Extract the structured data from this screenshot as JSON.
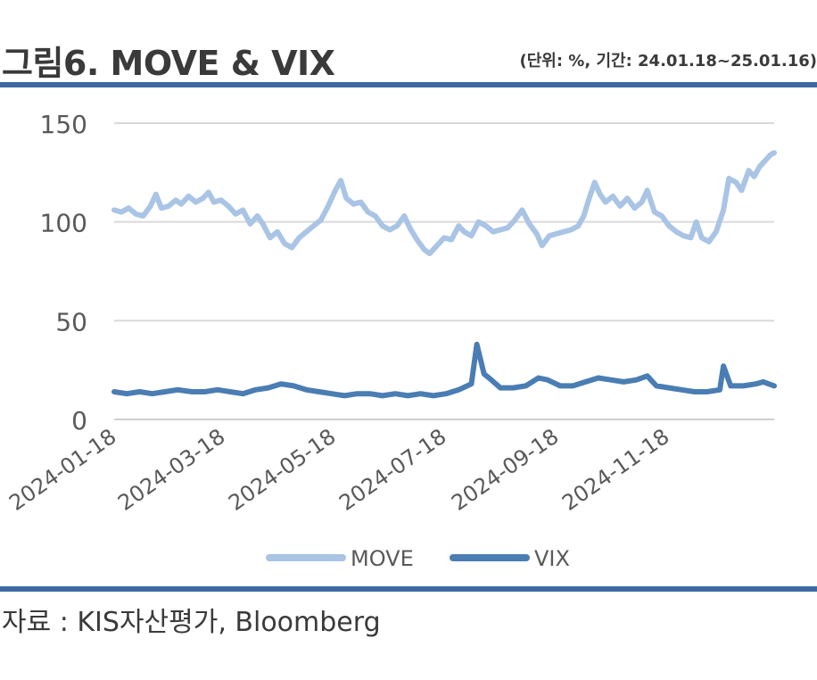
{
  "header": {
    "title": "그림6. MOVE & VIX",
    "unit_note": "(단위: %, 기간: 24.01.18~25.01.16)"
  },
  "footer": {
    "source": "자료 : KIS자산평가, Bloomberg"
  },
  "colors": {
    "rule": "#3d6aa3",
    "grid": "#d9d9d9",
    "text": "#595959"
  },
  "chart_data": {
    "type": "line",
    "x_start": "2024-01-18",
    "x_end": "2025-01-16",
    "x_tick_labels": [
      "2024-01-18",
      "2024-03-18",
      "2024-05-18",
      "2024-07-18",
      "2024-09-18",
      "2024-11-18"
    ],
    "y_ticks": [
      0,
      50,
      100,
      150
    ],
    "ylim": [
      0,
      150
    ],
    "grid": true,
    "legend_position": "bottom",
    "series": [
      {
        "name": "MOVE",
        "color": "#a9c4e4",
        "points": [
          [
            "2024-01-18",
            106
          ],
          [
            "2024-01-22",
            105
          ],
          [
            "2024-01-26",
            107
          ],
          [
            "2024-01-30",
            104
          ],
          [
            "2024-02-03",
            103
          ],
          [
            "2024-02-07",
            108
          ],
          [
            "2024-02-10",
            114
          ],
          [
            "2024-02-13",
            107
          ],
          [
            "2024-02-17",
            108
          ],
          [
            "2024-02-21",
            111
          ],
          [
            "2024-02-24",
            109
          ],
          [
            "2024-02-28",
            113
          ],
          [
            "2024-03-03",
            110
          ],
          [
            "2024-03-07",
            112
          ],
          [
            "2024-03-10",
            115
          ],
          [
            "2024-03-13",
            110
          ],
          [
            "2024-03-17",
            111
          ],
          [
            "2024-03-21",
            108
          ],
          [
            "2024-03-25",
            104
          ],
          [
            "2024-03-29",
            106
          ],
          [
            "2024-04-02",
            99
          ],
          [
            "2024-04-06",
            103
          ],
          [
            "2024-04-09",
            99
          ],
          [
            "2024-04-13",
            92
          ],
          [
            "2024-04-17",
            95
          ],
          [
            "2024-04-21",
            89
          ],
          [
            "2024-04-25",
            87
          ],
          [
            "2024-04-29",
            92
          ],
          [
            "2024-05-03",
            95
          ],
          [
            "2024-05-07",
            98
          ],
          [
            "2024-05-11",
            101
          ],
          [
            "2024-05-15",
            108
          ],
          [
            "2024-05-19",
            116
          ],
          [
            "2024-05-22",
            121
          ],
          [
            "2024-05-25",
            112
          ],
          [
            "2024-05-29",
            109
          ],
          [
            "2024-06-02",
            110
          ],
          [
            "2024-06-06",
            105
          ],
          [
            "2024-06-10",
            103
          ],
          [
            "2024-06-14",
            98
          ],
          [
            "2024-06-18",
            96
          ],
          [
            "2024-06-22",
            98
          ],
          [
            "2024-06-26",
            103
          ],
          [
            "2024-06-29",
            97
          ],
          [
            "2024-07-03",
            91
          ],
          [
            "2024-07-07",
            86
          ],
          [
            "2024-07-10",
            84
          ],
          [
            "2024-07-14",
            88
          ],
          [
            "2024-07-18",
            92
          ],
          [
            "2024-07-22",
            91
          ],
          [
            "2024-07-26",
            98
          ],
          [
            "2024-07-29",
            95
          ],
          [
            "2024-08-02",
            93
          ],
          [
            "2024-08-06",
            100
          ],
          [
            "2024-08-10",
            98
          ],
          [
            "2024-08-14",
            95
          ],
          [
            "2024-08-18",
            96
          ],
          [
            "2024-08-22",
            97
          ],
          [
            "2024-08-26",
            101
          ],
          [
            "2024-08-30",
            106
          ],
          [
            "2024-09-03",
            99
          ],
          [
            "2024-09-07",
            94
          ],
          [
            "2024-09-10",
            88
          ],
          [
            "2024-09-14",
            93
          ],
          [
            "2024-09-18",
            94
          ],
          [
            "2024-09-22",
            95
          ],
          [
            "2024-09-26",
            96
          ],
          [
            "2024-09-30",
            98
          ],
          [
            "2024-10-03",
            103
          ],
          [
            "2024-10-06",
            112
          ],
          [
            "2024-10-09",
            120
          ],
          [
            "2024-10-12",
            114
          ],
          [
            "2024-10-15",
            110
          ],
          [
            "2024-10-19",
            113
          ],
          [
            "2024-10-23",
            108
          ],
          [
            "2024-10-27",
            112
          ],
          [
            "2024-10-31",
            107
          ],
          [
            "2024-11-04",
            110
          ],
          [
            "2024-11-07",
            116
          ],
          [
            "2024-11-11",
            105
          ],
          [
            "2024-11-15",
            103
          ],
          [
            "2024-11-19",
            98
          ],
          [
            "2024-11-23",
            95
          ],
          [
            "2024-11-27",
            93
          ],
          [
            "2024-12-01",
            92
          ],
          [
            "2024-12-04",
            100
          ],
          [
            "2024-12-07",
            92
          ],
          [
            "2024-12-11",
            90
          ],
          [
            "2024-12-15",
            95
          ],
          [
            "2024-12-19",
            106
          ],
          [
            "2024-12-22",
            122
          ],
          [
            "2024-12-26",
            120
          ],
          [
            "2024-12-29",
            116
          ],
          [
            "2025-01-02",
            126
          ],
          [
            "2025-01-05",
            123
          ],
          [
            "2025-01-08",
            128
          ],
          [
            "2025-01-11",
            131
          ],
          [
            "2025-01-14",
            134
          ],
          [
            "2025-01-16",
            135
          ]
        ]
      },
      {
        "name": "VIX",
        "color": "#4a7db3",
        "points": [
          [
            "2024-01-18",
            14
          ],
          [
            "2024-01-25",
            13
          ],
          [
            "2024-02-01",
            14
          ],
          [
            "2024-02-08",
            13
          ],
          [
            "2024-02-15",
            14
          ],
          [
            "2024-02-22",
            15
          ],
          [
            "2024-03-01",
            14
          ],
          [
            "2024-03-08",
            14
          ],
          [
            "2024-03-15",
            15
          ],
          [
            "2024-03-22",
            14
          ],
          [
            "2024-03-29",
            13
          ],
          [
            "2024-04-05",
            15
          ],
          [
            "2024-04-12",
            16
          ],
          [
            "2024-04-19",
            18
          ],
          [
            "2024-04-26",
            17
          ],
          [
            "2024-05-03",
            15
          ],
          [
            "2024-05-10",
            14
          ],
          [
            "2024-05-17",
            13
          ],
          [
            "2024-05-24",
            12
          ],
          [
            "2024-05-31",
            13
          ],
          [
            "2024-06-07",
            13
          ],
          [
            "2024-06-14",
            12
          ],
          [
            "2024-06-21",
            13
          ],
          [
            "2024-06-28",
            12
          ],
          [
            "2024-07-05",
            13
          ],
          [
            "2024-07-12",
            12
          ],
          [
            "2024-07-19",
            13
          ],
          [
            "2024-07-26",
            15
          ],
          [
            "2024-08-02",
            18
          ],
          [
            "2024-08-05",
            38
          ],
          [
            "2024-08-09",
            23
          ],
          [
            "2024-08-13",
            20
          ],
          [
            "2024-08-18",
            16
          ],
          [
            "2024-08-25",
            16
          ],
          [
            "2024-09-01",
            17
          ],
          [
            "2024-09-08",
            21
          ],
          [
            "2024-09-13",
            20
          ],
          [
            "2024-09-20",
            17
          ],
          [
            "2024-09-27",
            17
          ],
          [
            "2024-10-04",
            19
          ],
          [
            "2024-10-11",
            21
          ],
          [
            "2024-10-18",
            20
          ],
          [
            "2024-10-25",
            19
          ],
          [
            "2024-11-01",
            20
          ],
          [
            "2024-11-07",
            22
          ],
          [
            "2024-11-12",
            17
          ],
          [
            "2024-11-19",
            16
          ],
          [
            "2024-11-26",
            15
          ],
          [
            "2024-12-03",
            14
          ],
          [
            "2024-12-10",
            14
          ],
          [
            "2024-12-17",
            15
          ],
          [
            "2024-12-19",
            27
          ],
          [
            "2024-12-23",
            17
          ],
          [
            "2024-12-30",
            17
          ],
          [
            "2025-01-06",
            18
          ],
          [
            "2025-01-10",
            19
          ],
          [
            "2025-01-16",
            17
          ]
        ]
      }
    ]
  }
}
